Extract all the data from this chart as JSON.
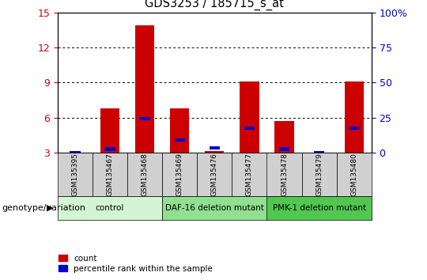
{
  "title": "GDS3253 / 185715_s_at",
  "samples": [
    "GSM135395",
    "GSM135467",
    "GSM135468",
    "GSM135469",
    "GSM135476",
    "GSM135477",
    "GSM135478",
    "GSM135479",
    "GSM135480"
  ],
  "red_heights": [
    3.0,
    6.8,
    13.9,
    6.8,
    3.1,
    9.1,
    5.7,
    3.0,
    9.1
  ],
  "blue_values": [
    3.0,
    3.3,
    5.9,
    4.1,
    3.4,
    5.1,
    3.3,
    3.0,
    5.1
  ],
  "ylim_left": [
    3,
    15
  ],
  "yticks_left": [
    3,
    6,
    9,
    12,
    15
  ],
  "ylim_right": [
    0,
    100
  ],
  "yticks_right": [
    0,
    25,
    50,
    75,
    100
  ],
  "groups": [
    {
      "label": "control",
      "start": 0,
      "end": 3,
      "color": "#d4f5d4"
    },
    {
      "label": "DAF-16 deletion mutant",
      "start": 3,
      "end": 6,
      "color": "#90e090"
    },
    {
      "label": "PMK-1 deletion mutant",
      "start": 6,
      "end": 9,
      "color": "#50c850"
    }
  ],
  "bar_color": "#cc0000",
  "blue_color": "#0000cc",
  "bar_width": 0.55,
  "grid_color": "#000000",
  "tick_label_color_left": "#cc0000",
  "tick_label_color_right": "#0000cc",
  "xlabel": "genotype/variation",
  "legend_count": "count",
  "legend_percentile": "percentile rank within the sample",
  "bg_color": "#ffffff",
  "plot_bg_color": "#ffffff",
  "label_box_color": "#d0d0d0"
}
